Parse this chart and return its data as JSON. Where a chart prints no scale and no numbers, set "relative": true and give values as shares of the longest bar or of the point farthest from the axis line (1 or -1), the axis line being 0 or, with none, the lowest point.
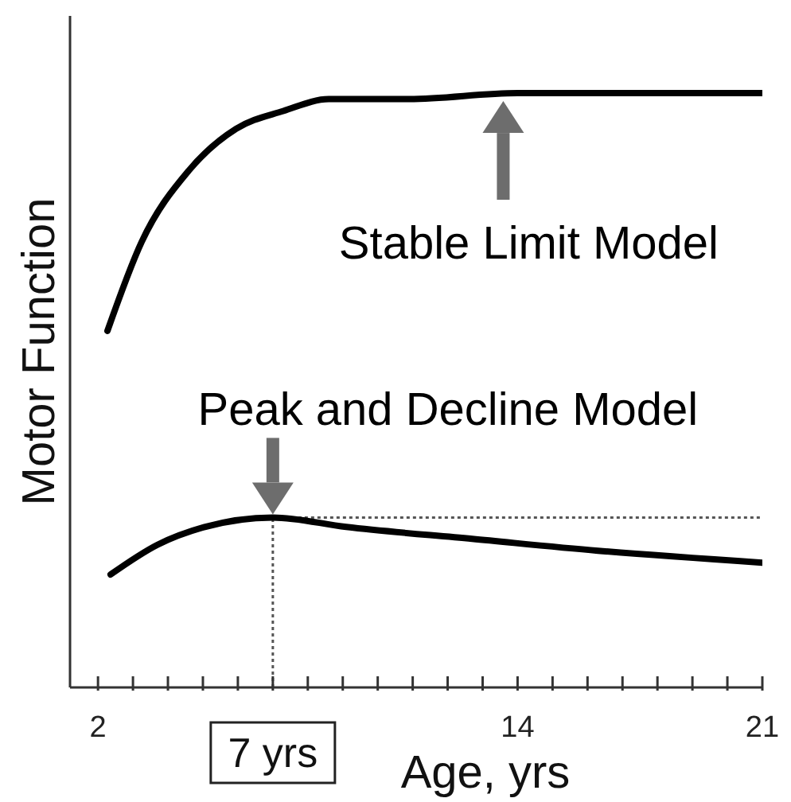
{
  "chart_data": {
    "type": "line",
    "relative": true,
    "xlabel": "Age, yrs",
    "ylabel": "Motor Function",
    "xlim": [
      1.2,
      21
    ],
    "xticks": [
      2,
      {
        "value": 3,
        "label": null
      },
      {
        "value": 4,
        "label": null
      },
      {
        "value": 5,
        "label": null
      },
      {
        "value": 6,
        "label": null
      },
      {
        "value": 7,
        "label": null
      },
      {
        "value": 8,
        "label": null
      },
      {
        "value": 9,
        "label": null
      },
      {
        "value": 10,
        "label": null
      },
      {
        "value": 11,
        "label": null
      },
      {
        "value": 12,
        "label": null
      },
      {
        "value": 13,
        "label": null
      },
      14,
      {
        "value": 15,
        "label": null
      },
      {
        "value": 16,
        "label": null
      },
      {
        "value": 17,
        "label": null
      },
      {
        "value": 18,
        "label": null
      },
      {
        "value": 19,
        "label": null
      },
      {
        "value": 20,
        "label": null
      },
      21
    ],
    "series": [
      {
        "name": "Stable Limit Model",
        "color": "#000000",
        "x": [
          2.27,
          3.25,
          4.6,
          5.95,
          7.3,
          8.6,
          10.9,
          14,
          21
        ],
        "values": [
          0.6,
          0.75,
          0.87,
          0.94,
          0.97,
          0.99,
          0.99,
          1.0,
          1.0
        ]
      },
      {
        "name": "Peak and Decline Model",
        "color": "#000000",
        "x": [
          2.36,
          3.7,
          5.05,
          7,
          9.1,
          12.7,
          16.3,
          21
        ],
        "values": [
          0.19,
          0.24,
          0.27,
          0.286,
          0.27,
          0.25,
          0.23,
          0.21
        ]
      }
    ],
    "ref_lines": [
      {
        "axis": "x",
        "value": 7,
        "label": "7 yrs",
        "line_style": "dotted",
        "color": "#555555"
      },
      {
        "axis": "y",
        "value": 0.286,
        "line_style": "dotted",
        "color": "#555555"
      }
    ],
    "marker": "none",
    "line_style": "solid"
  }
}
